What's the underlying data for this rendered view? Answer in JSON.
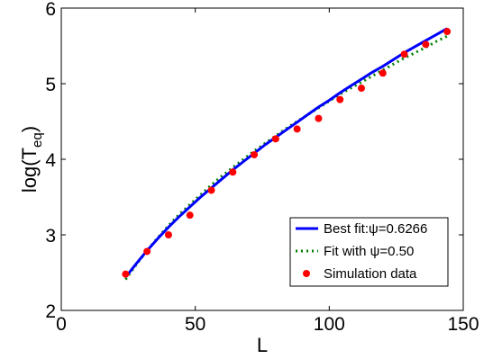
{
  "chart_data": {
    "type": "line",
    "xlabel": "L",
    "ylabel": {
      "base": "log(T",
      "sub": "eq",
      "close": ")"
    },
    "xlim": [
      0,
      150
    ],
    "ylim": [
      2,
      6
    ],
    "x_ticks": [
      0,
      50,
      100,
      150
    ],
    "y_ticks": [
      2,
      3,
      4,
      5,
      6
    ],
    "grid": false,
    "legend_position": "lower-right",
    "series": [
      {
        "name": "Best fit:ψ=0.6266",
        "style": "solid-line",
        "color": "#0000ff",
        "x": [
          24,
          28,
          32,
          36,
          40,
          44,
          48,
          52,
          56,
          60,
          64,
          68,
          72,
          76,
          80,
          84,
          88,
          92,
          96,
          100,
          104,
          108,
          112,
          116,
          120,
          124,
          128,
          132,
          136,
          140,
          144
        ],
        "y": [
          2.44,
          2.62,
          2.79,
          2.95,
          3.1,
          3.24,
          3.37,
          3.5,
          3.62,
          3.74,
          3.86,
          3.97,
          4.08,
          4.19,
          4.29,
          4.39,
          4.49,
          4.59,
          4.69,
          4.78,
          4.88,
          4.97,
          5.06,
          5.15,
          5.23,
          5.32,
          5.41,
          5.49,
          5.57,
          5.65,
          5.73
        ]
      },
      {
        "name": "Fit with ψ=0.50",
        "style": "dotted-line",
        "color": "#008000",
        "x": [
          24,
          28,
          32,
          36,
          40,
          44,
          48,
          52,
          56,
          60,
          64,
          68,
          72,
          76,
          80,
          84,
          88,
          92,
          96,
          100,
          104,
          108,
          112,
          116,
          120,
          124,
          128,
          132,
          136,
          140,
          144
        ],
        "y": [
          2.41,
          2.61,
          2.79,
          2.96,
          3.12,
          3.27,
          3.4,
          3.53,
          3.66,
          3.78,
          3.89,
          4.0,
          4.11,
          4.21,
          4.31,
          4.41,
          4.5,
          4.59,
          4.68,
          4.77,
          4.86,
          4.94,
          5.02,
          5.1,
          5.18,
          5.26,
          5.34,
          5.41,
          5.48,
          5.56,
          5.63
        ]
      },
      {
        "name": "Simulation data",
        "style": "markers",
        "color": "#ff0000",
        "x": [
          24,
          32,
          40,
          48,
          56,
          64,
          72,
          80,
          88,
          96,
          104,
          112,
          120,
          128,
          136,
          144
        ],
        "y": [
          2.48,
          2.78,
          3.0,
          3.26,
          3.59,
          3.83,
          4.06,
          4.27,
          4.4,
          4.54,
          4.79,
          4.94,
          5.14,
          5.39,
          5.52,
          5.69
        ]
      }
    ]
  }
}
